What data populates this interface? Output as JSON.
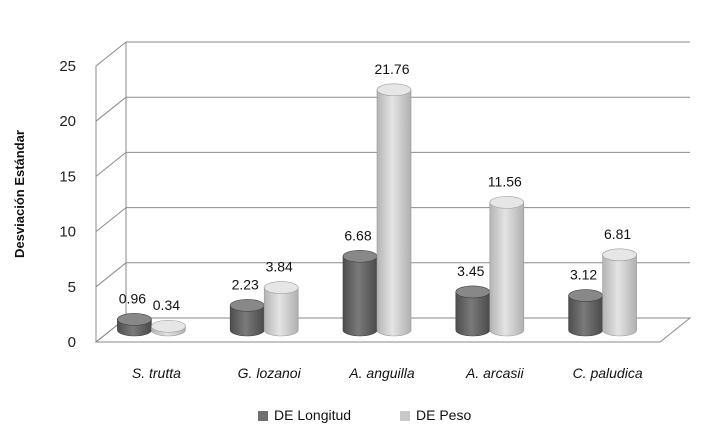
{
  "chart_data": {
    "type": "bar",
    "categories": [
      "S. trutta",
      "G. lozanoi",
      "A. anguilla",
      "A. arcasii",
      "C. paludica"
    ],
    "series": [
      {
        "name": "DE Longitud",
        "values": [
          0.96,
          2.23,
          6.68,
          3.45,
          3.12
        ],
        "color": "#6f6f6f"
      },
      {
        "name": "DE Peso",
        "values": [
          0.34,
          3.84,
          21.76,
          11.56,
          6.81
        ],
        "color": "#c8c8c8"
      }
    ],
    "data_labels": [
      [
        "0.96",
        "2.23",
        "6.68",
        "3.45",
        "3.12"
      ],
      [
        "0.34",
        "3.84",
        "21.76",
        "11.56",
        "6.81"
      ]
    ],
    "y_ticks": [
      "0",
      "5",
      "10",
      "15",
      "20",
      "25"
    ],
    "ylim": [
      0,
      25
    ],
    "ylabel": "Desviación  Estándar",
    "xlabel": "",
    "title": "",
    "grid": true,
    "legend_position": "bottom",
    "style": "3d-cylinder"
  }
}
